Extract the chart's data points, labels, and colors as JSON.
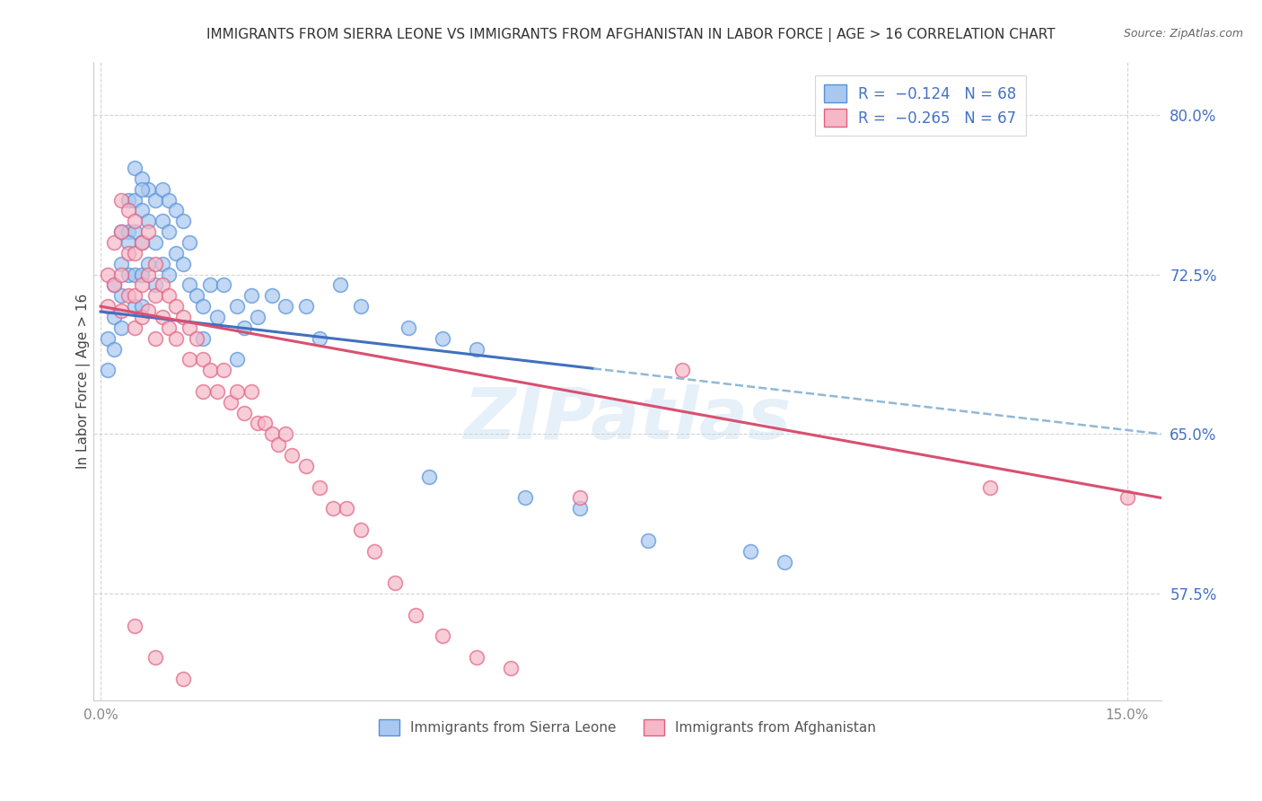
{
  "title": "IMMIGRANTS FROM SIERRA LEONE VS IMMIGRANTS FROM AFGHANISTAN IN LABOR FORCE | AGE > 16 CORRELATION CHART",
  "source": "Source: ZipAtlas.com",
  "ylabel": "In Labor Force | Age > 16",
  "ylabel_ticks": [
    "57.5%",
    "65.0%",
    "72.5%",
    "80.0%"
  ],
  "ylim": [
    0.525,
    0.825
  ],
  "xlim": [
    -0.001,
    0.155
  ],
  "ytick_vals": [
    0.575,
    0.65,
    0.725,
    0.8
  ],
  "xtick_vals": [
    0.0,
    0.15
  ],
  "xtick_labels": [
    "0.0%",
    "15.0%"
  ],
  "color_blue": "#a8c8f0",
  "color_pink": "#f5b8c8",
  "edge_blue": "#5590d8",
  "edge_pink": "#e06080",
  "line_blue_solid": "#4070c0",
  "line_blue_dashed": "#90b8d8",
  "line_pink": "#d85070",
  "watermark": "ZIPatlas",
  "background_color": "#ffffff",
  "grid_color": "#d0d0d0",
  "sierra_leone_x": [
    0.001,
    0.001,
    0.002,
    0.002,
    0.002,
    0.003,
    0.003,
    0.003,
    0.003,
    0.004,
    0.004,
    0.004,
    0.005,
    0.005,
    0.005,
    0.005,
    0.005,
    0.006,
    0.006,
    0.006,
    0.006,
    0.006,
    0.007,
    0.007,
    0.007,
    0.008,
    0.008,
    0.009,
    0.009,
    0.009,
    0.01,
    0.01,
    0.01,
    0.011,
    0.011,
    0.012,
    0.012,
    0.013,
    0.013,
    0.014,
    0.015,
    0.016,
    0.017,
    0.018,
    0.02,
    0.021,
    0.022,
    0.023,
    0.025,
    0.027,
    0.03,
    0.032,
    0.035,
    0.038,
    0.045,
    0.05,
    0.055,
    0.062,
    0.07,
    0.08,
    0.095,
    0.1,
    0.048,
    0.02,
    0.015,
    0.008,
    0.006,
    0.004
  ],
  "sierra_leone_y": [
    0.695,
    0.68,
    0.72,
    0.705,
    0.69,
    0.745,
    0.73,
    0.715,
    0.7,
    0.76,
    0.745,
    0.725,
    0.775,
    0.76,
    0.745,
    0.725,
    0.71,
    0.77,
    0.755,
    0.74,
    0.725,
    0.71,
    0.765,
    0.75,
    0.73,
    0.76,
    0.74,
    0.765,
    0.75,
    0.73,
    0.76,
    0.745,
    0.725,
    0.755,
    0.735,
    0.75,
    0.73,
    0.74,
    0.72,
    0.715,
    0.71,
    0.72,
    0.705,
    0.72,
    0.71,
    0.7,
    0.715,
    0.705,
    0.715,
    0.71,
    0.71,
    0.695,
    0.72,
    0.71,
    0.7,
    0.695,
    0.69,
    0.62,
    0.615,
    0.6,
    0.595,
    0.59,
    0.63,
    0.685,
    0.695,
    0.72,
    0.765,
    0.74
  ],
  "afghanistan_x": [
    0.001,
    0.001,
    0.002,
    0.002,
    0.003,
    0.003,
    0.003,
    0.003,
    0.004,
    0.004,
    0.004,
    0.005,
    0.005,
    0.005,
    0.005,
    0.006,
    0.006,
    0.006,
    0.007,
    0.007,
    0.007,
    0.008,
    0.008,
    0.008,
    0.009,
    0.009,
    0.01,
    0.01,
    0.011,
    0.011,
    0.012,
    0.013,
    0.013,
    0.014,
    0.015,
    0.015,
    0.016,
    0.017,
    0.018,
    0.019,
    0.02,
    0.021,
    0.022,
    0.023,
    0.024,
    0.025,
    0.026,
    0.027,
    0.028,
    0.03,
    0.032,
    0.034,
    0.036,
    0.038,
    0.04,
    0.043,
    0.046,
    0.05,
    0.055,
    0.06,
    0.07,
    0.085,
    0.13,
    0.15,
    0.005,
    0.008,
    0.012
  ],
  "afghanistan_y": [
    0.725,
    0.71,
    0.74,
    0.72,
    0.76,
    0.745,
    0.725,
    0.708,
    0.755,
    0.735,
    0.715,
    0.75,
    0.735,
    0.715,
    0.7,
    0.74,
    0.72,
    0.705,
    0.745,
    0.725,
    0.708,
    0.73,
    0.715,
    0.695,
    0.72,
    0.705,
    0.715,
    0.7,
    0.71,
    0.695,
    0.705,
    0.7,
    0.685,
    0.695,
    0.685,
    0.67,
    0.68,
    0.67,
    0.68,
    0.665,
    0.67,
    0.66,
    0.67,
    0.655,
    0.655,
    0.65,
    0.645,
    0.65,
    0.64,
    0.635,
    0.625,
    0.615,
    0.615,
    0.605,
    0.595,
    0.58,
    0.565,
    0.555,
    0.545,
    0.54,
    0.62,
    0.68,
    0.625,
    0.62,
    0.56,
    0.545,
    0.535
  ]
}
